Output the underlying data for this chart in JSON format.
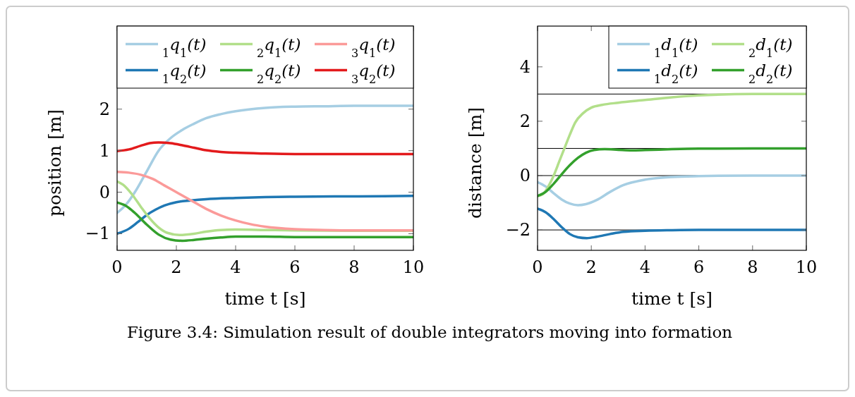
{
  "chart_data": [
    {
      "type": "line",
      "xlabel": "time t [s]",
      "ylabel": "position [m]",
      "xlim": [
        0,
        10
      ],
      "ylim": [
        -1.4,
        4
      ],
      "xticks": [
        0,
        2,
        4,
        6,
        8,
        10
      ],
      "yticks": [
        {
          "value": -1,
          "label": "−1"
        },
        0,
        1,
        2
      ],
      "legend": "top",
      "grid": false,
      "line_style": "solid",
      "marker": "none",
      "series": [
        {
          "name": "$_{1}$q$_{1}$(t)",
          "color": "#a6cee3",
          "x": [
            0,
            0.3,
            0.6,
            1,
            1.4,
            1.8,
            2.2,
            2.6,
            3,
            3.5,
            4,
            5,
            6,
            7,
            8,
            10
          ],
          "values": [
            -0.5,
            -0.3,
            0,
            0.5,
            1,
            1.3,
            1.5,
            1.65,
            1.78,
            1.88,
            1.95,
            2.03,
            2.06,
            2.07,
            2.08,
            2.08
          ]
        },
        {
          "name": "$_{1}$q$_{2}$(t)",
          "color": "#1f78b4",
          "x": [
            0,
            0.4,
            0.7,
            1,
            1.3,
            1.6,
            2,
            2.5,
            3,
            4,
            5,
            6,
            8,
            10
          ],
          "values": [
            -1,
            -0.88,
            -0.72,
            -0.55,
            -0.42,
            -0.32,
            -0.24,
            -0.2,
            -0.17,
            -0.14,
            -0.12,
            -0.11,
            -0.1,
            -0.09
          ]
        },
        {
          "name": "$_{2}$q$_{1}$(t)",
          "color": "#b2df8a",
          "x": [
            0,
            0.2,
            0.5,
            0.8,
            1.1,
            1.4,
            1.7,
            2.1,
            2.6,
            3,
            3.5,
            4,
            5,
            6,
            8,
            10
          ],
          "values": [
            0.26,
            0.18,
            -0.05,
            -0.35,
            -0.63,
            -0.85,
            -0.98,
            -1.03,
            -1,
            -0.95,
            -0.91,
            -0.9,
            -0.91,
            -0.92,
            -0.93,
            -0.93
          ]
        },
        {
          "name": "$_{2}$q$_{2}$(t)",
          "color": "#33a02c",
          "x": [
            0,
            0.3,
            0.6,
            1,
            1.4,
            1.8,
            2.2,
            2.6,
            3,
            3.5,
            4,
            5,
            6,
            8,
            10
          ],
          "values": [
            -0.25,
            -0.33,
            -0.5,
            -0.78,
            -1.02,
            -1.14,
            -1.17,
            -1.15,
            -1.12,
            -1.09,
            -1.07,
            -1.07,
            -1.08,
            -1.08,
            -1.08
          ]
        },
        {
          "name": "$_{3}$q$_{1}$(t)",
          "color": "#fb9a99",
          "x": [
            0,
            0.4,
            0.8,
            1.2,
            1.6,
            2,
            2.5,
            3,
            3.5,
            4,
            4.5,
            5,
            6,
            7,
            8,
            10
          ],
          "values": [
            0.49,
            0.47,
            0.42,
            0.32,
            0.16,
            0,
            -0.2,
            -0.4,
            -0.56,
            -0.68,
            -0.77,
            -0.83,
            -0.89,
            -0.91,
            -0.92,
            -0.92
          ]
        },
        {
          "name": "$_{3}$q$_{2}$(t)",
          "color": "#e31a1c",
          "x": [
            0,
            0.4,
            0.8,
            1.1,
            1.4,
            1.8,
            2.2,
            2.6,
            3,
            3.5,
            4,
            5,
            6,
            8,
            10
          ],
          "values": [
            0.99,
            1.03,
            1.12,
            1.18,
            1.2,
            1.18,
            1.13,
            1.07,
            1.01,
            0.97,
            0.95,
            0.93,
            0.92,
            0.92,
            0.92
          ]
        }
      ]
    },
    {
      "type": "line",
      "xlabel": "time t [s]",
      "ylabel": "distance [m]",
      "xlim": [
        0,
        10
      ],
      "ylim": [
        -2.75,
        5.5
      ],
      "xticks": [
        0,
        2,
        4,
        6,
        8,
        10
      ],
      "yticks": [
        {
          "value": -2,
          "label": "−2"
        },
        0,
        2,
        4
      ],
      "legend": "top right",
      "grid": false,
      "line_style": "solid",
      "marker": "none",
      "ref_lines": [
        {
          "axis": "y",
          "value": 3,
          "color": "#000000"
        },
        {
          "axis": "y",
          "value": 1,
          "color": "#000000"
        },
        {
          "axis": "y",
          "value": 0,
          "color": "#000000"
        },
        {
          "axis": "y",
          "value": -2,
          "color": "#000000"
        }
      ],
      "annotations": [
        "Figure 3.4: Simulation result of double integrators moving into formation"
      ],
      "series": [
        {
          "name": "$_{1}$d$_{1}$(t)",
          "color": "#a6cee3",
          "x": [
            0,
            0.3,
            0.6,
            0.9,
            1.2,
            1.5,
            1.8,
            2.2,
            2.7,
            3.2,
            4,
            5,
            6,
            8,
            10
          ],
          "values": [
            -0.24,
            -0.4,
            -0.65,
            -0.88,
            -1.03,
            -1.09,
            -1.05,
            -0.9,
            -0.6,
            -0.35,
            -0.15,
            -0.05,
            -0.02,
            0,
            0
          ]
        },
        {
          "name": "$_{1}$d$_{2}$(t)",
          "color": "#1f78b4",
          "x": [
            0,
            0.3,
            0.6,
            0.9,
            1.2,
            1.5,
            1.83,
            2.2,
            2.7,
            3.2,
            4,
            5,
            6,
            8,
            10
          ],
          "values": [
            -1.22,
            -1.35,
            -1.6,
            -1.9,
            -2.15,
            -2.27,
            -2.3,
            -2.25,
            -2.15,
            -2.07,
            -2.03,
            -2.01,
            -2,
            -2,
            -2
          ]
        },
        {
          "name": "$_{2}$d$_{1}$(t)",
          "color": "#b2df8a",
          "x": [
            0,
            0.2,
            0.4,
            0.6,
            0.8,
            1,
            1.2,
            1.4,
            1.7,
            2,
            2.4,
            3,
            4,
            5,
            6,
            8,
            10
          ],
          "values": [
            -0.75,
            -0.68,
            -0.4,
            0,
            0.5,
            1,
            1.5,
            1.95,
            2.3,
            2.5,
            2.6,
            2.68,
            2.78,
            2.88,
            2.95,
            3,
            3
          ]
        },
        {
          "name": "$_{2}$d$_{2}$(t)",
          "color": "#33a02c",
          "x": [
            0,
            0.3,
            0.6,
            0.9,
            1.2,
            1.5,
            1.8,
            2.1,
            2.5,
            3,
            3.5,
            4,
            5,
            6,
            8,
            10
          ],
          "values": [
            -0.75,
            -0.6,
            -0.3,
            0.05,
            0.38,
            0.65,
            0.84,
            0.94,
            0.97,
            0.95,
            0.93,
            0.94,
            0.97,
            0.99,
            1,
            1
          ]
        }
      ]
    }
  ]
}
